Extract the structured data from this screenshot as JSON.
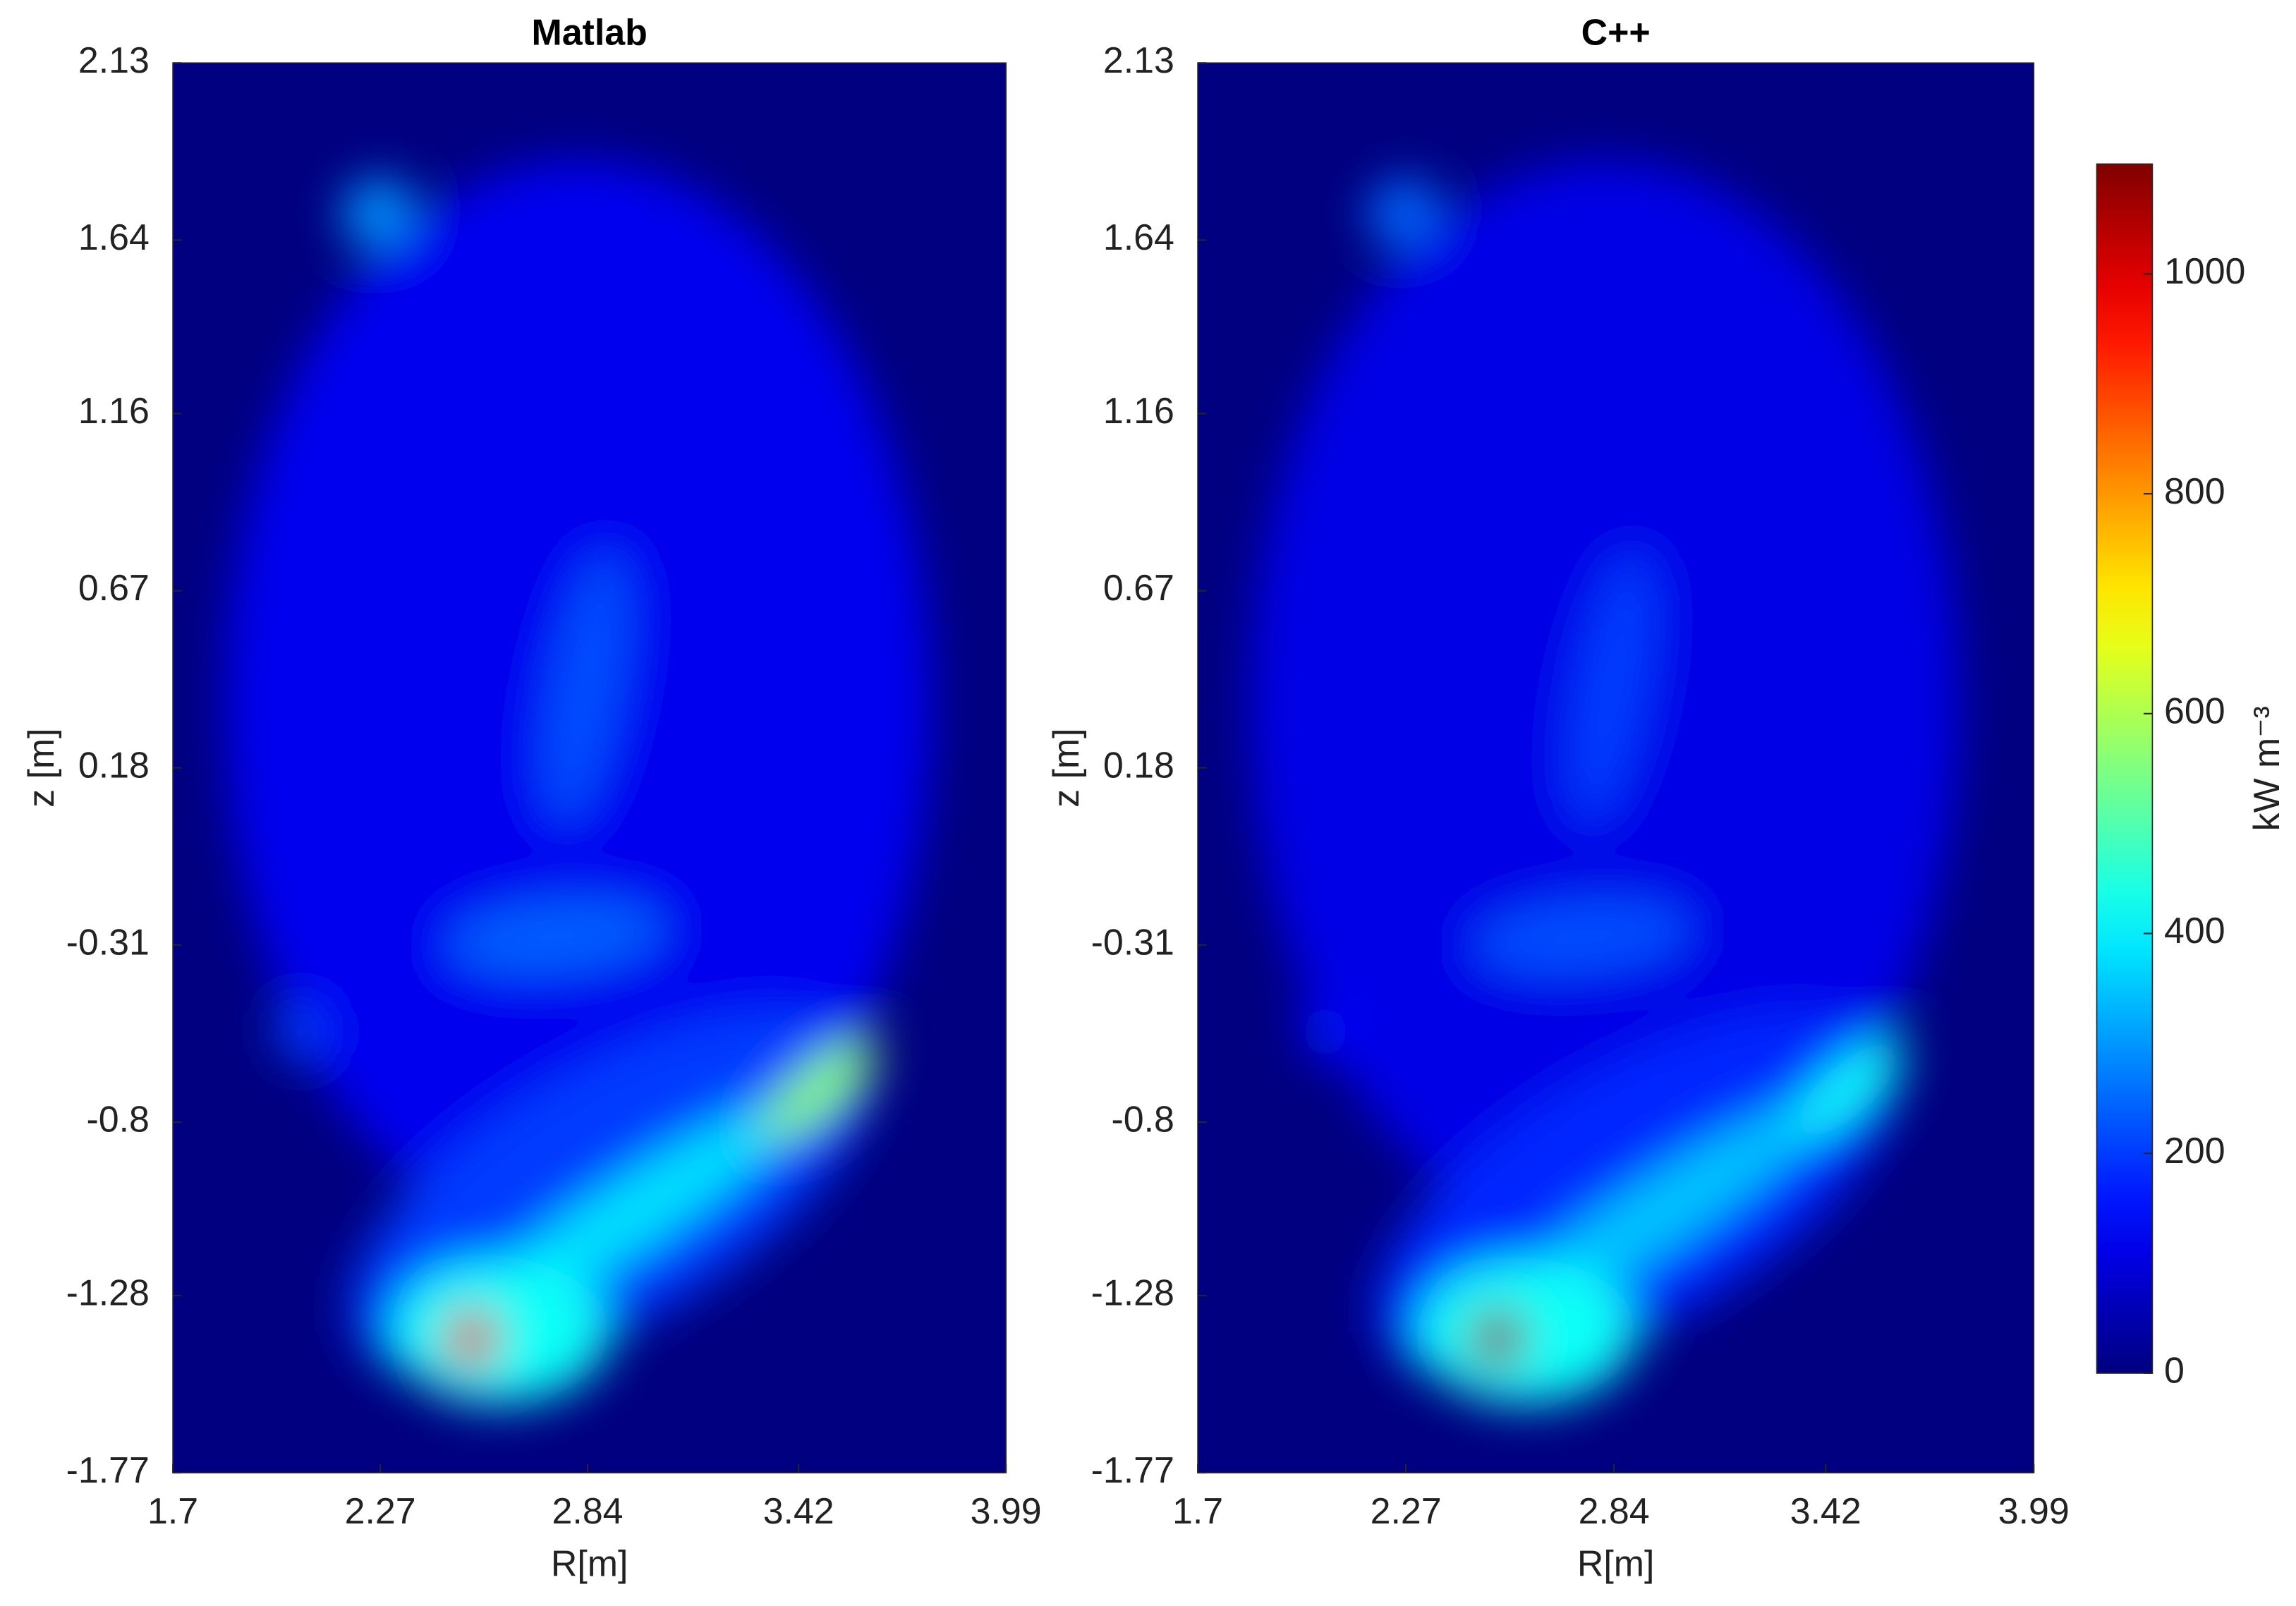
{
  "chart_data": [
    {
      "type": "heatmap",
      "title": "Matlab",
      "xlabel": "R[m]",
      "ylabel": "z [m]",
      "xlim": [
        1.7,
        3.99
      ],
      "xticks": [
        1.7,
        2.27,
        2.84,
        3.42,
        3.99
      ],
      "ylim": [
        -1.77,
        2.13
      ],
      "yticks": [
        -1.77,
        -1.28,
        -0.8,
        -0.31,
        0.18,
        0.67,
        1.16,
        1.64,
        2.13
      ],
      "clim": [
        0,
        1100
      ],
      "sources": [
        {
          "x": 2.815,
          "y": 0.36,
          "value": 120,
          "rx": 0.97,
          "ry": 1.5,
          "angle": 0
        },
        {
          "x": 2.9,
          "y": -1.0,
          "value": 200,
          "rx": 0.8,
          "ry": 0.35,
          "angle": -30
        },
        {
          "x": 2.263,
          "y": 1.717,
          "value": 300,
          "rx": 0.1,
          "ry": 0.09,
          "angle": -30
        },
        {
          "x": 2.835,
          "y": 0.4,
          "value": 220,
          "rx": 0.1,
          "ry": 0.38,
          "angle": 10
        },
        {
          "x": 2.754,
          "y": -0.288,
          "value": 240,
          "rx": 0.3,
          "ry": 0.1,
          "angle": -5
        },
        {
          "x": 2.05,
          "y": -0.55,
          "value": 200,
          "rx": 0.07,
          "ry": 0.08,
          "angle": 0
        },
        {
          "x": 2.956,
          "y": -1.057,
          "value": 380,
          "rx": 0.55,
          "ry": 0.1,
          "angle": -33
        },
        {
          "x": 3.48,
          "y": -0.71,
          "value": 560,
          "rx": 0.2,
          "ry": 0.07,
          "angle": -40
        },
        {
          "x": 2.6,
          "y": -1.38,
          "value": 420,
          "rx": 0.3,
          "ry": 0.2,
          "angle": 0
        },
        {
          "x": 2.521,
          "y": -1.4,
          "value": 1000,
          "rx": 0.07,
          "ry": 0.08,
          "angle": 0
        }
      ]
    },
    {
      "type": "heatmap",
      "title": "C++",
      "xlabel": "R[m]",
      "ylabel": "z [m]",
      "xlim": [
        1.7,
        3.99
      ],
      "xticks": [
        1.7,
        2.27,
        2.84,
        3.42,
        3.99
      ],
      "ylim": [
        -1.77,
        2.13
      ],
      "yticks": [
        -1.77,
        -1.28,
        -0.8,
        -0.31,
        0.18,
        0.67,
        1.16,
        1.64,
        2.13
      ],
      "clim": [
        0,
        1100
      ],
      "sources": [
        {
          "x": 2.815,
          "y": 0.36,
          "value": 110,
          "rx": 0.97,
          "ry": 1.5,
          "angle": 0
        },
        {
          "x": 2.9,
          "y": -1.0,
          "value": 180,
          "rx": 0.8,
          "ry": 0.35,
          "angle": -30
        },
        {
          "x": 2.263,
          "y": 1.717,
          "value": 250,
          "rx": 0.1,
          "ry": 0.09,
          "angle": -30
        },
        {
          "x": 2.835,
          "y": 0.4,
          "value": 200,
          "rx": 0.1,
          "ry": 0.38,
          "angle": 10
        },
        {
          "x": 2.754,
          "y": -0.288,
          "value": 220,
          "rx": 0.3,
          "ry": 0.1,
          "angle": -5
        },
        {
          "x": 2.05,
          "y": -0.55,
          "value": 150,
          "rx": 0.07,
          "ry": 0.08,
          "angle": 0
        },
        {
          "x": 2.956,
          "y": -1.057,
          "value": 350,
          "rx": 0.55,
          "ry": 0.1,
          "angle": -33
        },
        {
          "x": 3.48,
          "y": -0.71,
          "value": 420,
          "rx": 0.2,
          "ry": 0.07,
          "angle": -40
        },
        {
          "x": 2.6,
          "y": -1.38,
          "value": 420,
          "rx": 0.3,
          "ry": 0.2,
          "angle": 0
        },
        {
          "x": 2.521,
          "y": -1.4,
          "value": 1100,
          "rx": 0.07,
          "ry": 0.08,
          "angle": 0
        }
      ],
      "colorbar": {
        "clim": [
          0,
          1100
        ],
        "ticks": [
          0,
          200,
          400,
          600,
          800,
          1000
        ],
        "label": "kW m⁻³"
      }
    }
  ]
}
